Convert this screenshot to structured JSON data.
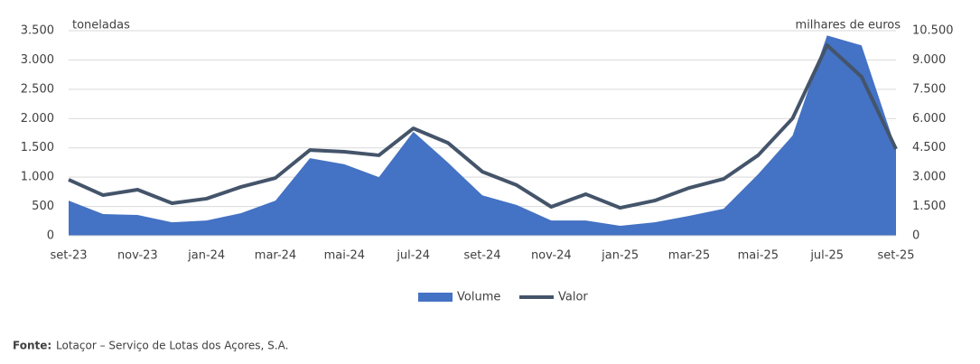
{
  "chart_data": {
    "type": "area-line",
    "y_label": "toneladas",
    "y2_label": "milhares de euros",
    "categories": [
      "set-23",
      null,
      "nov-23",
      null,
      "jan-24",
      null,
      "mar-24",
      null,
      "mai-24",
      null,
      "jul-24",
      null,
      "set-24",
      null,
      "nov-24",
      null,
      "jan-25",
      null,
      "mar-25",
      null,
      "mai-25",
      null,
      "jul-25",
      null,
      "set-25"
    ],
    "series": [
      {
        "name": "Volume",
        "kind": "area",
        "color": "#4472c4",
        "values": [
          600,
          370,
          355,
          230,
          260,
          385,
          600,
          1325,
          1220,
          1000,
          1775,
          1250,
          690,
          525,
          260,
          260,
          170,
          230,
          340,
          460,
          1050,
          1710,
          3420,
          3250,
          1480
        ]
      },
      {
        "name": "Valor",
        "kind": "line",
        "axis": "y2",
        "color": "#44546a",
        "values": [
          2870,
          2080,
          2360,
          1665,
          1900,
          2500,
          2960,
          4390,
          4300,
          4120,
          5500,
          4760,
          3280,
          2590,
          1480,
          2130,
          1430,
          1800,
          2450,
          2910,
          4120,
          6010,
          9760,
          8140,
          4440
        ]
      }
    ],
    "ylim": [
      0,
      3500
    ],
    "yticks": [
      0,
      500,
      {
        "value": 1000,
        "label": "1.000"
      },
      {
        "value": 1500,
        "label": "1.500"
      },
      {
        "value": 2000,
        "label": "2.000"
      },
      {
        "value": 2500,
        "label": "2.500"
      },
      {
        "value": 3000,
        "label": "3.000"
      },
      {
        "value": 3500,
        "label": "3.500"
      }
    ],
    "y2lim": [
      0,
      10500
    ],
    "y2ticks": [
      0,
      {
        "value": 1500,
        "label": "1.500"
      },
      {
        "value": 3000,
        "label": "3.000"
      },
      {
        "value": 4500,
        "label": "4.500"
      },
      {
        "value": 6000,
        "label": "6.000"
      },
      {
        "value": 7500,
        "label": "7.500"
      },
      {
        "value": 9000,
        "label": "9.000"
      },
      {
        "value": 10500,
        "label": "10.500"
      }
    ],
    "grid": true,
    "legend": "bottom",
    "source": {
      "label": "Fonte:",
      "text": "Lotaçor – Serviço de Lotas dos Açores, S.A."
    }
  }
}
